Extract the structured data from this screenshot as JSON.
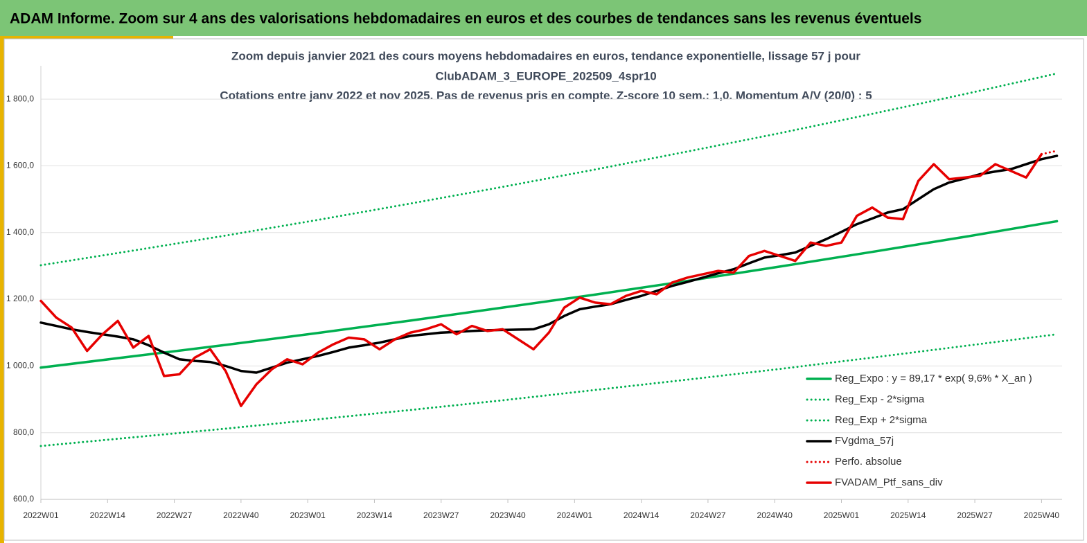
{
  "header": {
    "title": "ADAM Informe. Zoom sur 4 ans des valorisations hebdomadaires en euros et des courbes de tendances sans les revenus éventuels"
  },
  "chart_data": {
    "type": "line",
    "title": [
      "Zoom depuis janvier 2021 des cours moyens hebdomadaires  en euros, tendance exponentielle, lissage 57 j pour",
      "ClubADAM_3_EUROPE_202509_4spr10",
      "Cotations  entre janv 2022 et nov 2025. Pas de revenus pris en compte. Z-score 10 sem.: 1,0. Momentum  A/V (20/0) : 5"
    ],
    "xlim": [
      0,
      199
    ],
    "xticks": [
      {
        "value": 0,
        "label": "2022W01"
      },
      {
        "value": 13,
        "label": "2022W14"
      },
      {
        "value": 26,
        "label": "2022W27"
      },
      {
        "value": 39,
        "label": "2022W40"
      },
      {
        "value": 52,
        "label": "2023W01"
      },
      {
        "value": 65,
        "label": "2023W14"
      },
      {
        "value": 78,
        "label": "2023W27"
      },
      {
        "value": 91,
        "label": "2023W40"
      },
      {
        "value": 104,
        "label": "2024W01"
      },
      {
        "value": 117,
        "label": "2024W14"
      },
      {
        "value": 130,
        "label": "2024W27"
      },
      {
        "value": 143,
        "label": "2024W40"
      },
      {
        "value": 156,
        "label": "2025W01"
      },
      {
        "value": 169,
        "label": "2025W14"
      },
      {
        "value": 182,
        "label": "2025W27"
      },
      {
        "value": 195,
        "label": "2025W40"
      }
    ],
    "ylim": [
      600,
      1900
    ],
    "yticks": [
      {
        "value": 600,
        "label": "600,0"
      },
      {
        "value": 800,
        "label": "800,0"
      },
      {
        "value": 1000,
        "label": "1 000,0"
      },
      {
        "value": 1200,
        "label": "1 200,0"
      },
      {
        "value": 1400,
        "label": "1 400,0"
      },
      {
        "value": 1600,
        "label": "1 600,0"
      },
      {
        "value": 1800,
        "label": "1 800,0"
      }
    ],
    "grid": true,
    "legend": "bottom-right",
    "series": [
      {
        "name": "Reg_Expo : y = 89,17 * exp( 9,6% *  X_an )",
        "color": "#00b050",
        "dashed": false,
        "x": [
          0,
          18,
          36,
          54,
          72,
          90,
          108,
          126,
          144,
          162,
          180,
          198
        ],
        "values": [
          995,
          1029,
          1063,
          1099,
          1136,
          1175,
          1214,
          1255,
          1298,
          1342,
          1387,
          1434
        ]
      },
      {
        "name": "Reg_Exp - 2*sigma",
        "color": "#00b050",
        "dashed": true,
        "x": [
          0,
          18,
          36,
          54,
          72,
          90,
          108,
          126,
          144,
          162,
          180,
          198
        ],
        "values": [
          760,
          786,
          812,
          840,
          868,
          897,
          928,
          959,
          991,
          1025,
          1060,
          1095
        ]
      },
      {
        "name": "Reg_Exp + 2*sigma",
        "color": "#00b050",
        "dashed": true,
        "x": [
          0,
          18,
          36,
          54,
          72,
          90,
          108,
          126,
          144,
          162,
          180,
          198
        ],
        "values": [
          1302,
          1346,
          1391,
          1438,
          1487,
          1537,
          1589,
          1643,
          1698,
          1756,
          1815,
          1877
        ]
      },
      {
        "name": "FVgdma_57j",
        "color": "#000000",
        "dashed": false,
        "x": [
          0,
          3,
          6,
          9,
          12,
          15,
          18,
          21,
          24,
          27,
          30,
          33,
          36,
          39,
          42,
          45,
          48,
          51,
          54,
          57,
          60,
          63,
          66,
          69,
          72,
          75,
          78,
          81,
          84,
          87,
          90,
          93,
          96,
          99,
          102,
          105,
          108,
          111,
          114,
          117,
          120,
          123,
          126,
          129,
          132,
          135,
          138,
          141,
          144,
          147,
          150,
          153,
          156,
          159,
          162,
          165,
          168,
          171,
          174,
          177,
          180,
          183,
          186,
          189,
          192,
          195,
          198
        ],
        "values": [
          1130,
          1120,
          1110,
          1102,
          1095,
          1088,
          1080,
          1062,
          1040,
          1020,
          1015,
          1012,
          1000,
          985,
          980,
          995,
          1010,
          1020,
          1030,
          1042,
          1055,
          1062,
          1070,
          1080,
          1090,
          1095,
          1100,
          1102,
          1105,
          1107,
          1108,
          1109,
          1110,
          1125,
          1150,
          1170,
          1178,
          1185,
          1198,
          1210,
          1225,
          1240,
          1252,
          1265,
          1278,
          1290,
          1308,
          1325,
          1332,
          1340,
          1360,
          1380,
          1402,
          1425,
          1442,
          1460,
          1470,
          1500,
          1530,
          1550,
          1562,
          1575,
          1583,
          1590,
          1605,
          1620,
          1630
        ]
      },
      {
        "name": "Perfo. absolue",
        "color": "#e60000",
        "dashed": true,
        "x": [
          195,
          198
        ],
        "values": [
          1635,
          1645
        ]
      },
      {
        "name": "FVADAM_Ptf_sans_div",
        "color": "#e60000",
        "dashed": false,
        "x": [
          0,
          3,
          6,
          9,
          12,
          15,
          18,
          21,
          24,
          27,
          30,
          33,
          36,
          39,
          42,
          45,
          48,
          51,
          54,
          57,
          60,
          63,
          66,
          69,
          72,
          75,
          78,
          81,
          84,
          87,
          90,
          93,
          96,
          99,
          102,
          105,
          108,
          111,
          114,
          117,
          120,
          123,
          126,
          129,
          132,
          135,
          138,
          141,
          144,
          147,
          150,
          153,
          156,
          159,
          162,
          165,
          168,
          171,
          174,
          177,
          180,
          183,
          186,
          189,
          192,
          195
        ],
        "values": [
          1195,
          1145,
          1115,
          1045,
          1095,
          1135,
          1055,
          1090,
          970,
          975,
          1025,
          1050,
          985,
          880,
          945,
          990,
          1020,
          1005,
          1040,
          1065,
          1085,
          1080,
          1050,
          1080,
          1100,
          1110,
          1125,
          1095,
          1120,
          1105,
          1110,
          1080,
          1050,
          1100,
          1175,
          1205,
          1190,
          1185,
          1210,
          1225,
          1215,
          1250,
          1265,
          1275,
          1285,
          1280,
          1330,
          1345,
          1330,
          1315,
          1370,
          1360,
          1370,
          1450,
          1475,
          1445,
          1440,
          1555,
          1605,
          1560,
          1565,
          1570,
          1605,
          1585,
          1565,
          1635
        ]
      }
    ]
  }
}
